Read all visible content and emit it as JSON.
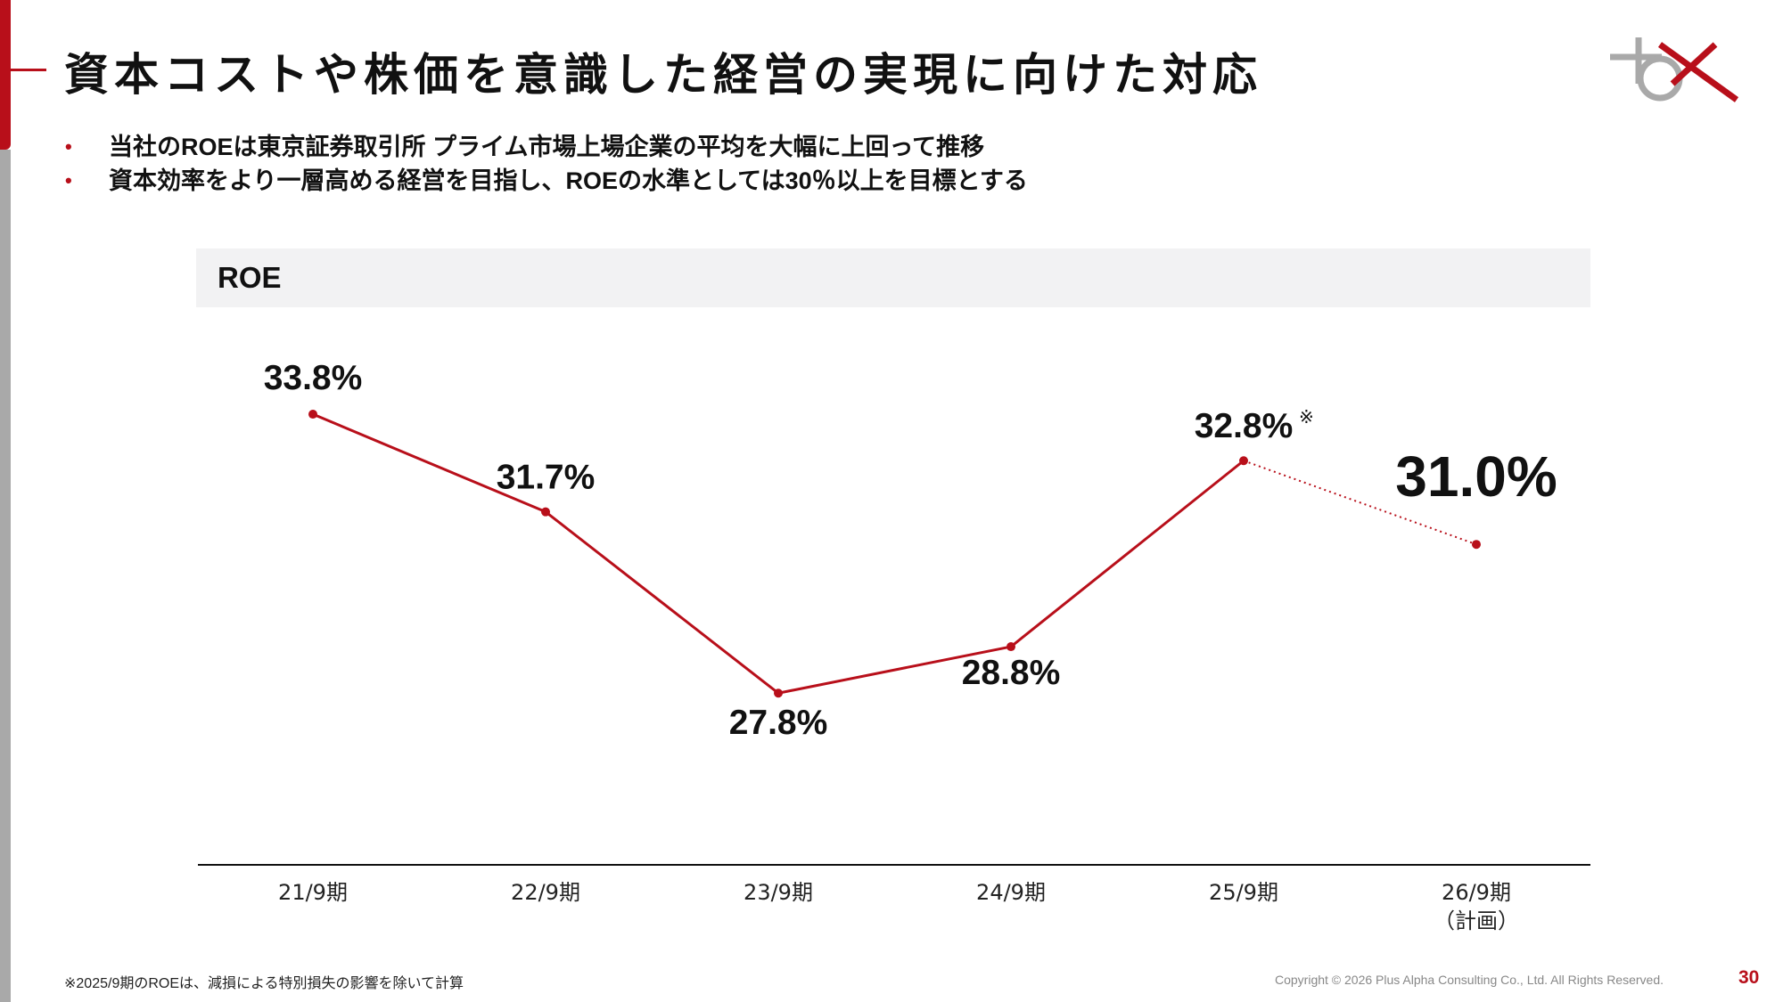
{
  "header": {
    "title": "資本コストや株価を意識した経営の実現に向けた対応"
  },
  "bullets": [
    "当社のROEは東京証券取引所 プライム市場上場企業の平均を大幅に上回って推移",
    "資本効率をより一層高める経営を目指し、ROEの水準としては30％以上を目標とする"
  ],
  "chart_data": {
    "type": "line",
    "title": "ROE",
    "categories": [
      "21/9期",
      "22/9期",
      "23/9期",
      "24/9期",
      "25/9期",
      "26/9期"
    ],
    "category_sublabels": [
      "",
      "",
      "",
      "",
      "",
      "（計画）"
    ],
    "values": [
      33.8,
      31.7,
      27.8,
      28.8,
      32.8,
      31.0
    ],
    "value_labels": [
      "33.8%",
      "31.7%",
      "27.8%",
      "28.8%",
      "32.8%",
      "31.0%"
    ],
    "label_marks": [
      "",
      "",
      "",
      "",
      "※",
      ""
    ],
    "projected_from_index": 4,
    "ylim": [
      22,
      37
    ],
    "grid": false,
    "line_color": "#b80f1a"
  },
  "footer": {
    "footnote": "※2025/9期のROEは、減損による特別損失の影響を除いて計算",
    "copyright": "Copyright © 2026 Plus Alpha Consulting Co., Ltd. All Rights Reserved.",
    "page_number": "30"
  },
  "colors": {
    "accent": "#b80f1a",
    "side_bar_gray": "#a9a9a9",
    "band": "#f2f2f3"
  },
  "icons": {
    "logo": "plus-alpha-consulting-logo"
  }
}
